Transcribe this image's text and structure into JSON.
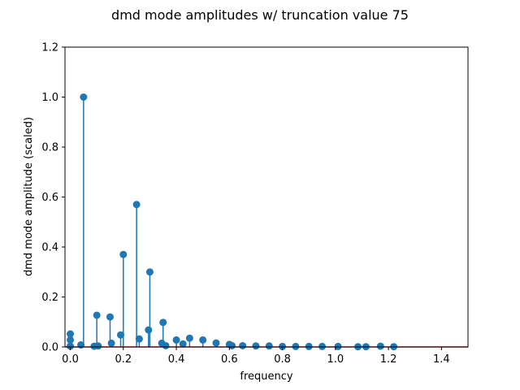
{
  "chart_data": {
    "type": "stem",
    "title": "dmd mode amplitudes w/ truncation value 75",
    "xlabel": "frequency",
    "ylabel": "dmd mode amplitude (scaled)",
    "xlim": [
      -0.02,
      1.5
    ],
    "ylim": [
      0,
      1.2
    ],
    "xticks": [
      0.0,
      0.2,
      0.4,
      0.6,
      0.8,
      1.0,
      1.2,
      1.4
    ],
    "xtick_labels": [
      "0.0",
      "0.2",
      "0.4",
      "0.6",
      "0.8",
      "1.0",
      "1.2",
      "1.4"
    ],
    "yticks": [
      0.0,
      0.2,
      0.4,
      0.6,
      0.8,
      1.0,
      1.2
    ],
    "ytick_labels": [
      "0.0",
      "0.2",
      "0.4",
      "0.6",
      "0.8",
      "1.0",
      "1.2"
    ],
    "grid": false,
    "colors": {
      "stem": "#1f77b4",
      "baseline": "#d62728"
    },
    "points": [
      {
        "x": 0.0,
        "y": 0.052
      },
      {
        "x": 0.0,
        "y": 0.028
      },
      {
        "x": 0.0,
        "y": 0.003
      },
      {
        "x": 0.04,
        "y": 0.008
      },
      {
        "x": 0.05,
        "y": 1.0
      },
      {
        "x": 0.09,
        "y": 0.003
      },
      {
        "x": 0.1,
        "y": 0.127
      },
      {
        "x": 0.105,
        "y": 0.004
      },
      {
        "x": 0.15,
        "y": 0.12
      },
      {
        "x": 0.155,
        "y": 0.015
      },
      {
        "x": 0.19,
        "y": 0.048
      },
      {
        "x": 0.2,
        "y": 0.37
      },
      {
        "x": 0.25,
        "y": 0.57
      },
      {
        "x": 0.26,
        "y": 0.032
      },
      {
        "x": 0.295,
        "y": 0.068
      },
      {
        "x": 0.3,
        "y": 0.3
      },
      {
        "x": 0.345,
        "y": 0.015
      },
      {
        "x": 0.35,
        "y": 0.098
      },
      {
        "x": 0.36,
        "y": 0.005
      },
      {
        "x": 0.4,
        "y": 0.028
      },
      {
        "x": 0.425,
        "y": 0.012
      },
      {
        "x": 0.45,
        "y": 0.035
      },
      {
        "x": 0.5,
        "y": 0.028
      },
      {
        "x": 0.55,
        "y": 0.016
      },
      {
        "x": 0.6,
        "y": 0.01
      },
      {
        "x": 0.61,
        "y": 0.005
      },
      {
        "x": 0.65,
        "y": 0.005
      },
      {
        "x": 0.7,
        "y": 0.004
      },
      {
        "x": 0.75,
        "y": 0.004
      },
      {
        "x": 0.8,
        "y": 0.002
      },
      {
        "x": 0.85,
        "y": 0.002
      },
      {
        "x": 0.9,
        "y": 0.002
      },
      {
        "x": 0.95,
        "y": 0.002
      },
      {
        "x": 1.01,
        "y": 0.002
      },
      {
        "x": 1.085,
        "y": 0.001
      },
      {
        "x": 1.115,
        "y": 0.001
      },
      {
        "x": 1.17,
        "y": 0.003
      },
      {
        "x": 1.22,
        "y": 0.001
      }
    ]
  }
}
